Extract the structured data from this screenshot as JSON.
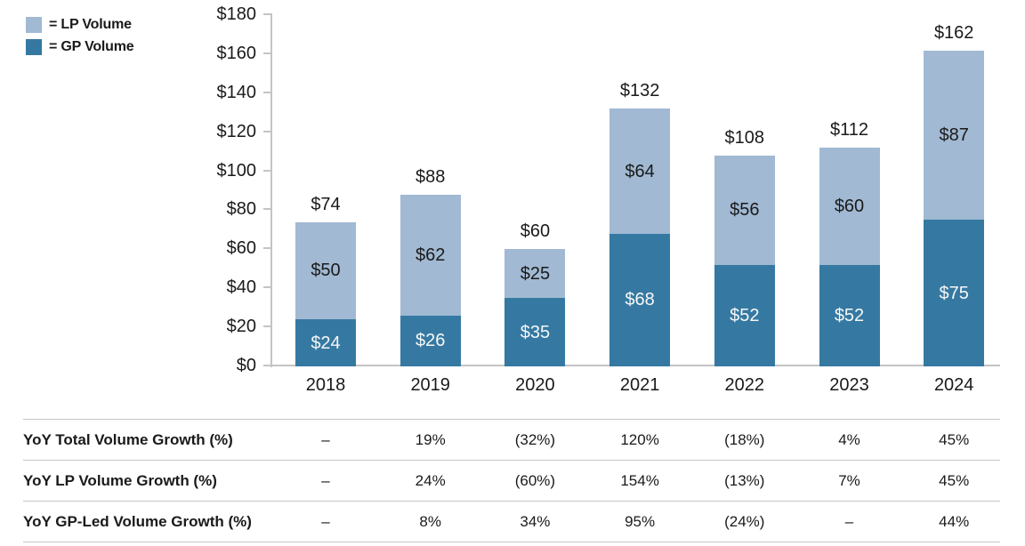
{
  "legend": {
    "items": [
      {
        "label": "= LP Volume",
        "color": "#a1b9d3"
      },
      {
        "label": "= GP Volume",
        "color": "#3579a2"
      }
    ]
  },
  "chart_data": {
    "type": "bar",
    "stacked": true,
    "title": "",
    "xlabel": "",
    "ylabel": "",
    "categories": [
      "2018",
      "2019",
      "2020",
      "2021",
      "2022",
      "2023",
      "2024"
    ],
    "series": [
      {
        "name": "GP Volume",
        "color": "#3579a2",
        "label_color": "#f7f7f7",
        "values": [
          24,
          26,
          35,
          68,
          52,
          52,
          75
        ]
      },
      {
        "name": "LP Volume",
        "color": "#a1b9d3",
        "label_color": "#1a1a1a",
        "values": [
          50,
          62,
          25,
          64,
          56,
          60,
          87
        ]
      }
    ],
    "totals": [
      74,
      88,
      60,
      132,
      108,
      112,
      162
    ],
    "value_prefix": "$",
    "ylim": [
      0,
      180
    ],
    "ytick_step": 20,
    "ytick_labels": [
      "$0",
      "$20",
      "$40",
      "$60",
      "$80",
      "$100",
      "$120",
      "$140",
      "$160",
      "$180"
    ],
    "grid": false,
    "legend_position": "top-left"
  },
  "table": {
    "rows": [
      {
        "label": "YoY Total Volume Growth (%)",
        "values": [
          "–",
          "19%",
          "(32%)",
          "120%",
          "(18%)",
          "4%",
          "45%"
        ]
      },
      {
        "label": "YoY LP Volume Growth (%)",
        "values": [
          "–",
          "24%",
          "(60%)",
          "154%",
          "(13%)",
          "7%",
          "45%"
        ]
      },
      {
        "label": "YoY GP-Led Volume Growth (%)",
        "values": [
          "–",
          "8%",
          "34%",
          "95%",
          "(24%)",
          "–",
          "44%"
        ]
      }
    ]
  },
  "colors": {
    "lp": "#a1b9d3",
    "gp": "#3579a2",
    "axis": "#c4c4c4",
    "table_rule": "#c6c6c6",
    "text": "#1a1a1a",
    "bar_label_light": "#f7f7f7"
  }
}
